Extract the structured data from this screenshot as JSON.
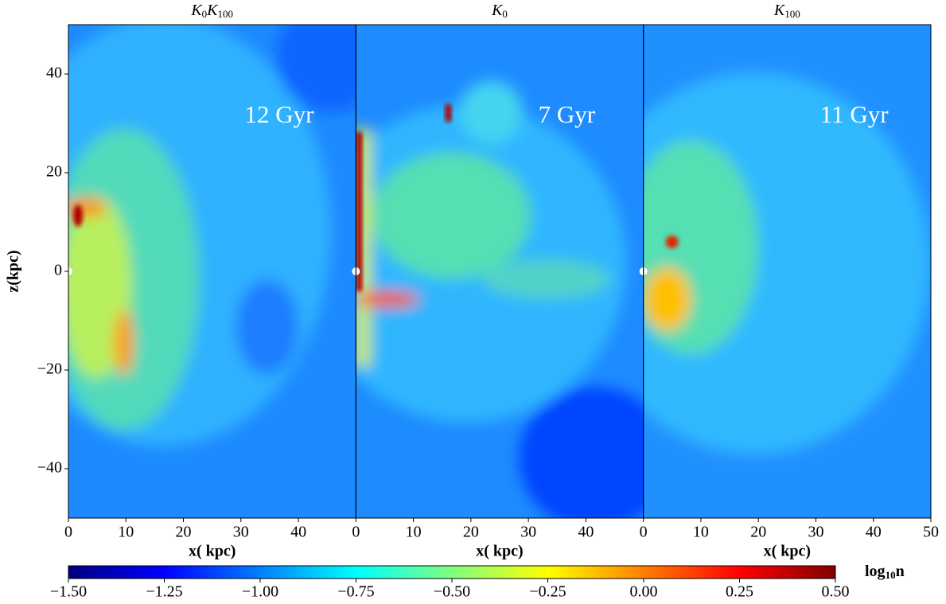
{
  "chart_data": {
    "type": "heatmap",
    "ylabel": "z(kpc)",
    "ylim": [
      -50,
      50
    ],
    "yticks": [
      {
        "value": -40,
        "label": "−40"
      },
      {
        "value": -20,
        "label": "−20"
      },
      0,
      20,
      40
    ],
    "panels": [
      {
        "title": [
          {
            "base": "K",
            "sub": "0"
          },
          {
            "base": "K",
            "sub": "100"
          }
        ],
        "annotation": "12 Gyr",
        "xlabel": "x( kpc)",
        "xlim": [
          0,
          50
        ],
        "xticks": [
          0,
          10,
          20,
          30,
          40
        ]
      },
      {
        "title": [
          {
            "base": "K",
            "sub": "0"
          }
        ],
        "annotation": "7 Gyr",
        "xlabel": "x( kpc)",
        "xlim": [
          0,
          50
        ],
        "xticks": [
          0,
          10,
          20,
          30,
          40
        ]
      },
      {
        "title": [
          {
            "base": "K",
            "sub": "100"
          }
        ],
        "annotation": "11 Gyr",
        "xlabel": "x( kpc)",
        "xlim": [
          0,
          50
        ],
        "xticks": [
          0,
          10,
          20,
          30,
          40,
          50
        ]
      }
    ],
    "colorbar": {
      "label": {
        "base": "log",
        "sub": "10",
        "rest": "n"
      },
      "colormap": "jet",
      "clim": [
        -1.5,
        0.5
      ],
      "ticks": [
        {
          "value": -1.5,
          "label": "−1.50"
        },
        {
          "value": -1.25,
          "label": "−1.25"
        },
        {
          "value": -1.0,
          "label": "−1.00"
        },
        {
          "value": -0.75,
          "label": "−0.75"
        },
        {
          "value": -0.5,
          "label": "−0.50"
        },
        {
          "value": -0.25,
          "label": "−0.25"
        },
        {
          "value": 0,
          "label": "0.00"
        },
        {
          "value": 0.25,
          "label": "0.25"
        },
        {
          "value": 0.5,
          "label": "0.50"
        }
      ]
    }
  }
}
